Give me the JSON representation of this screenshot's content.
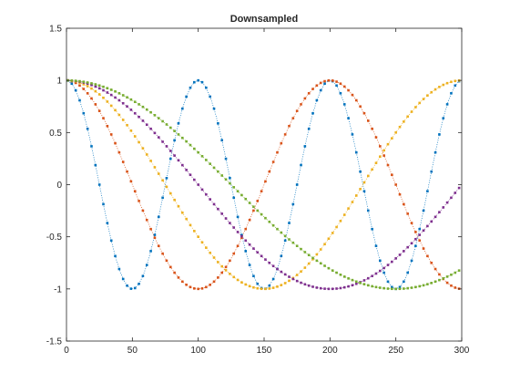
{
  "chart_data": {
    "type": "scatter",
    "title": "Downsampled",
    "xlabel": "",
    "ylabel": "",
    "xlim": [
      0,
      300
    ],
    "ylim": [
      -1.5,
      1.5
    ],
    "xticks": [
      0,
      50,
      100,
      150,
      200,
      250,
      300
    ],
    "xtick_labels": [
      "0",
      "50",
      "100",
      "150",
      "200",
      "250",
      "300"
    ],
    "yticks": [
      -1.5,
      -1,
      -0.5,
      0,
      0.5,
      1,
      1.5
    ],
    "ytick_labels": [
      "-1.5",
      "-1",
      "-0.5",
      "0",
      "0.5",
      "1",
      "1.5"
    ],
    "grid": false,
    "legend": "none",
    "line_style": "dotted",
    "marker": "dot",
    "series": [
      {
        "color": "#0072BD",
        "function": "cos(2*pi*x/100)",
        "x_start": 1,
        "x_end": 300,
        "x_step": 3
      },
      {
        "color": "#D95319",
        "function": "cos(2*pi*x/200)",
        "x_start": 1,
        "x_end": 300,
        "x_step": 3
      },
      {
        "color": "#EDB120",
        "function": "cos(2*pi*x/300)",
        "x_start": 1,
        "x_end": 300,
        "x_step": 3
      },
      {
        "color": "#7E2F8E",
        "function": "cos(2*pi*x/400)",
        "x_start": 1,
        "x_end": 300,
        "x_step": 3
      },
      {
        "color": "#77AC30",
        "function": "cos(2*pi*x/500)",
        "x_start": 1,
        "x_end": 300,
        "x_step": 3
      }
    ]
  }
}
